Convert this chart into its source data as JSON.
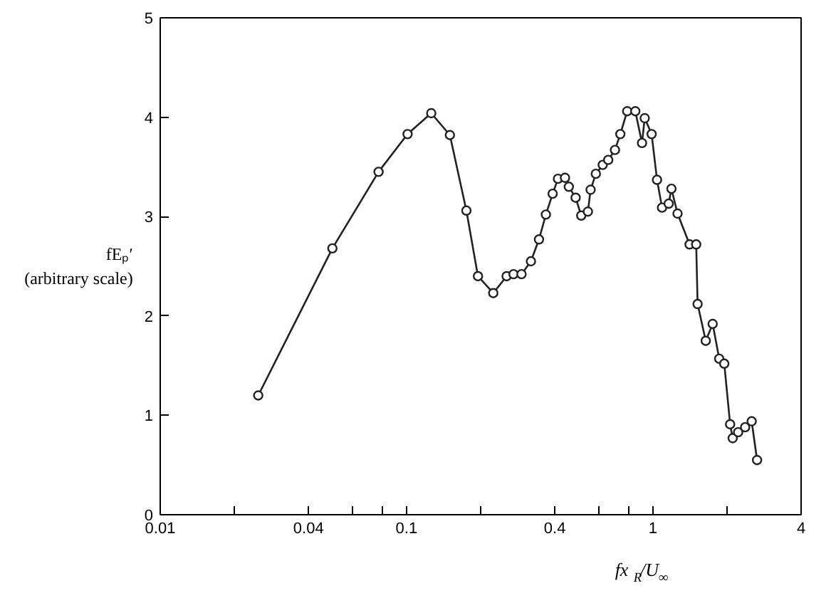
{
  "chart_data": {
    "type": "line",
    "xlabel": "fx$_{R}$/U$_{∞}$",
    "ylabel": "fEₚ′\n(arbitrary scale)",
    "log": "x",
    "marker": "circle",
    "line_style": "solid",
    "grid": false,
    "xlim": [
      0.01,
      4
    ],
    "ylim": [
      0,
      5
    ],
    "xticks": [
      0.01,
      {
        "value": 0.02,
        "label": null
      },
      0.04,
      {
        "value": 0.06,
        "label": null
      },
      {
        "value": 0.08,
        "label": null
      },
      0.1,
      {
        "value": 0.2,
        "label": null
      },
      0.4,
      {
        "value": 0.6,
        "label": null
      },
      {
        "value": 0.8,
        "label": null
      },
      1,
      {
        "value": 2,
        "label": null
      },
      4
    ],
    "yticks": [
      0,
      1,
      2,
      3,
      4,
      5
    ],
    "series": [
      {
        "color": "#222222",
        "x": [
          0.025,
          0.05,
          0.077,
          0.101,
          0.126,
          0.15,
          0.175,
          0.195,
          0.225,
          0.255,
          0.272,
          0.293,
          0.32,
          0.345,
          0.368,
          0.392,
          0.412,
          0.44,
          0.456,
          0.486,
          0.512,
          0.545,
          0.559,
          0.587,
          0.626,
          0.659,
          0.702,
          0.738,
          0.787,
          0.849,
          0.904,
          0.927,
          0.989,
          1.04,
          1.09,
          1.16,
          1.19,
          1.26,
          1.41,
          1.5,
          1.52,
          1.64,
          1.75,
          1.86,
          1.95,
          2.06,
          2.11,
          2.22,
          2.37,
          2.52,
          2.65
        ],
        "values": [
          1.2,
          2.68,
          3.45,
          3.83,
          4.04,
          3.82,
          3.06,
          2.4,
          2.23,
          2.4,
          2.42,
          2.42,
          2.55,
          2.77,
          3.02,
          3.23,
          3.38,
          3.39,
          3.3,
          3.19,
          3.01,
          3.05,
          3.27,
          3.43,
          3.52,
          3.57,
          3.67,
          3.83,
          4.06,
          4.06,
          3.74,
          3.99,
          3.83,
          3.37,
          3.09,
          3.13,
          3.28,
          3.03,
          2.72,
          2.72,
          2.12,
          1.75,
          1.92,
          1.57,
          1.52,
          0.91,
          0.77,
          0.83,
          0.88,
          0.94,
          0.55
        ]
      }
    ]
  }
}
